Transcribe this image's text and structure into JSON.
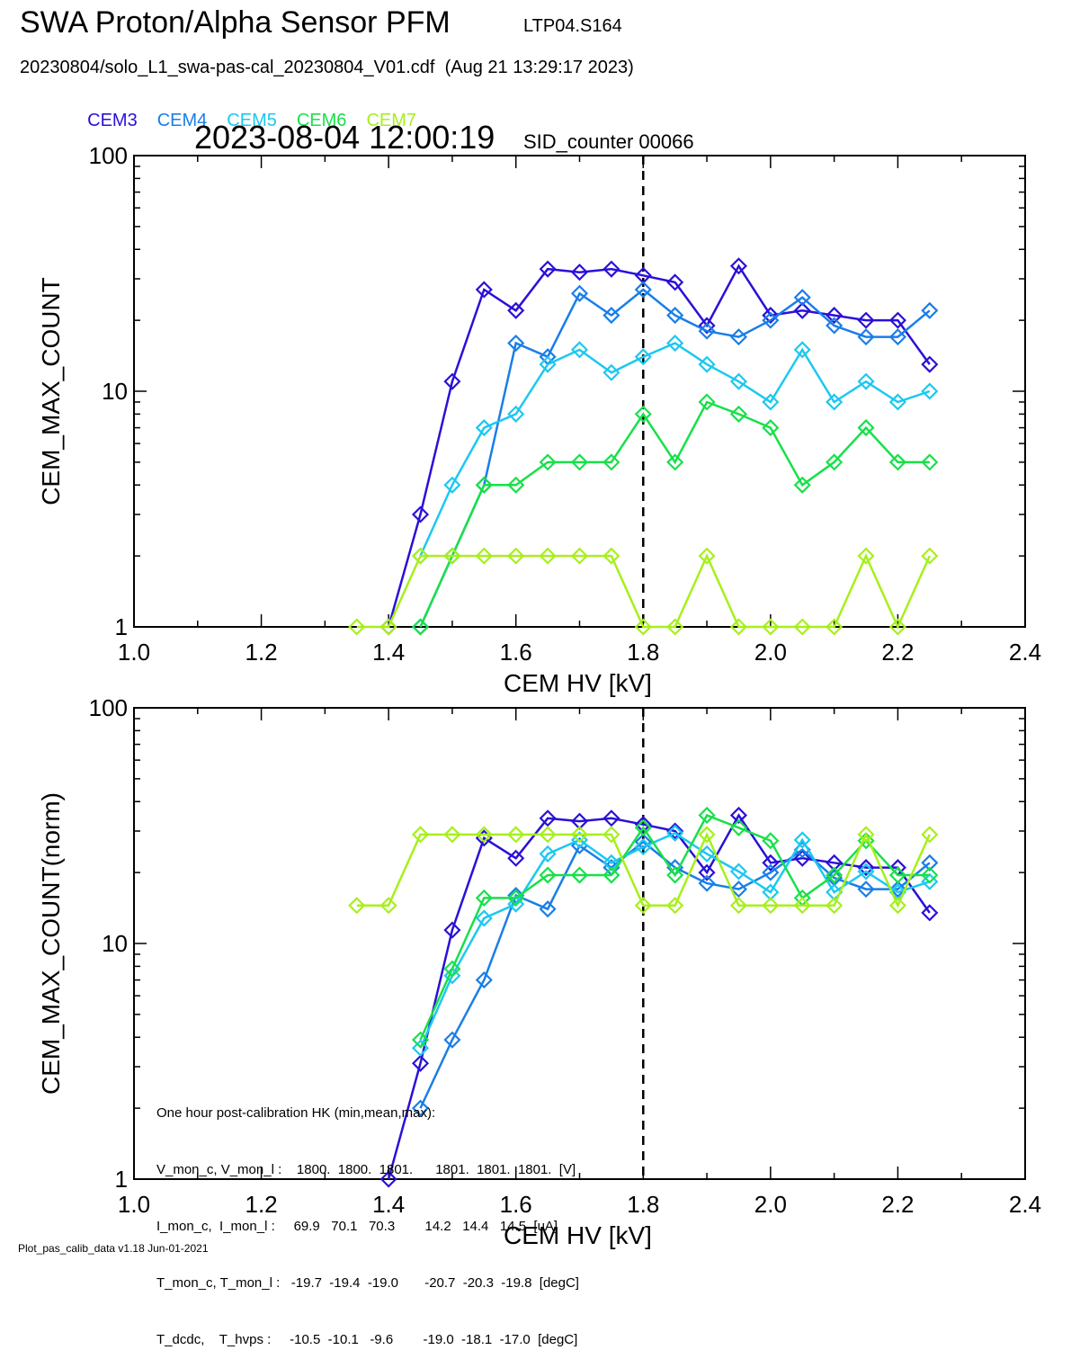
{
  "header": {
    "title": "SWA Proton/Alpha Sensor PFM",
    "run_id": "LTP04.S164",
    "filename": "20230804/solo_L1_swa-pas-cal_20230804_V01.cdf  (Aug 21 13:29:17 2023)",
    "timestamp": "2023-08-04 12:00:19",
    "sid_counter": "SID_counter 00066"
  },
  "footer": {
    "text": "Plot_pas_calib_data v1.18 Jun-01-2021"
  },
  "hk_box": {
    "lines": [
      "One hour post-calibration HK (min,mean,max):",
      "V_mon_c, V_mon_l :    1800.  1800.  1801.      1801.  1801.  1801.  [V]",
      "I_mon_c,  I_mon_l :     69.9   70.1   70.3        14.2   14.4   14.5  [uA]",
      "T_mon_c, T_mon_l :   -19.7  -19.4  -19.0       -20.7  -20.3  -19.8  [degC]",
      "T_dcdc,    T_hvps :     -10.5  -10.1   -9.6        -19.0  -18.1  -17.0  [degC]"
    ]
  },
  "colors": {
    "CEM3": "#2a10d8",
    "CEM4": "#1a7ee8",
    "CEM5": "#1cc8f0",
    "CEM6": "#18e04a",
    "CEM7": "#a6f01a"
  },
  "chart_data": [
    {
      "type": "line",
      "xlabel": "CEM HV [kV]",
      "ylabel": "CEM_MAX_COUNT",
      "xlim": [
        1.0,
        2.4
      ],
      "ylim": [
        1,
        100
      ],
      "yscale": "log",
      "xticks": [
        "1.0",
        "1.2",
        "1.4",
        "1.6",
        "1.8",
        "2.0",
        "2.2",
        "2.4"
      ],
      "yticks": [
        "1",
        "10",
        "100"
      ],
      "vline_x": 1.8,
      "series": [
        {
          "name": "CEM3",
          "x": [
            1.4,
            1.45,
            1.5,
            1.55,
            1.6,
            1.65,
            1.7,
            1.75,
            1.8,
            1.85,
            1.9,
            1.95,
            2.0,
            2.05,
            2.1,
            2.15,
            2.2,
            2.25
          ],
          "y": [
            1,
            3,
            11,
            27,
            22,
            33,
            32,
            33,
            31,
            29,
            19,
            34,
            21,
            22,
            21,
            20,
            20,
            13
          ]
        },
        {
          "name": "CEM4",
          "x": [
            1.45,
            1.5,
            1.55,
            1.6,
            1.65,
            1.7,
            1.75,
            1.8,
            1.85,
            1.9,
            1.95,
            2.0,
            2.05,
            2.1,
            2.15,
            2.2,
            2.25
          ],
          "y": [
            1,
            2,
            4,
            16,
            14,
            26,
            21,
            27,
            21,
            18,
            17,
            20,
            25,
            19,
            17,
            17,
            22
          ]
        },
        {
          "name": "CEM5",
          "x": [
            1.45,
            1.5,
            1.55,
            1.6,
            1.65,
            1.7,
            1.75,
            1.8,
            1.85,
            1.9,
            1.95,
            2.0,
            2.05,
            2.1,
            2.15,
            2.2,
            2.25
          ],
          "y": [
            2,
            4,
            7,
            8,
            13,
            15,
            12,
            14,
            16,
            13,
            11,
            9,
            15,
            9,
            11,
            9,
            10
          ]
        },
        {
          "name": "CEM6",
          "x": [
            1.45,
            1.5,
            1.55,
            1.6,
            1.65,
            1.7,
            1.75,
            1.8,
            1.85,
            1.9,
            1.95,
            2.0,
            2.05,
            2.1,
            2.15,
            2.2,
            2.25
          ],
          "y": [
            1,
            2,
            4,
            4,
            5,
            5,
            5,
            8,
            5,
            9,
            8,
            7,
            4,
            5,
            7,
            5,
            5
          ]
        },
        {
          "name": "CEM7",
          "x": [
            1.35,
            1.4,
            1.45,
            1.5,
            1.55,
            1.6,
            1.65,
            1.7,
            1.75,
            1.8,
            1.85,
            1.9,
            1.95,
            2.0,
            2.05,
            2.1,
            2.15,
            2.2,
            2.25
          ],
          "y": [
            1,
            1,
            2,
            2,
            2,
            2,
            2,
            2,
            2,
            1,
            1,
            2,
            1,
            1,
            1,
            1,
            2,
            1,
            2
          ]
        }
      ]
    },
    {
      "type": "line",
      "xlabel": "CEM HV [kV]",
      "ylabel": "CEM_MAX_COUNT(norm)",
      "xlim": [
        1.0,
        2.4
      ],
      "ylim": [
        1,
        100
      ],
      "yscale": "log",
      "xticks": [
        "1.0",
        "1.2",
        "1.4",
        "1.6",
        "1.8",
        "2.0",
        "2.2",
        "2.4"
      ],
      "yticks": [
        "1",
        "10",
        "100"
      ],
      "vline_x": 1.8,
      "series": [
        {
          "name": "CEM3",
          "x": [
            1.4,
            1.45,
            1.5,
            1.55,
            1.6,
            1.65,
            1.7,
            1.75,
            1.8,
            1.85,
            1.9,
            1.95,
            2.0,
            2.05,
            2.1,
            2.15,
            2.2,
            2.25
          ],
          "y": [
            1,
            3.1,
            11.4,
            28,
            23,
            34,
            33,
            34,
            32,
            30,
            20,
            35,
            22,
            23,
            22,
            21,
            21,
            13.5
          ]
        },
        {
          "name": "CEM4",
          "x": [
            1.45,
            1.5,
            1.55,
            1.6,
            1.65,
            1.7,
            1.75,
            1.8,
            1.85,
            1.9,
            1.95,
            2.0,
            2.05,
            2.1,
            2.15,
            2.2,
            2.25
          ],
          "y": [
            2.0,
            3.9,
            7.0,
            16,
            14,
            26,
            21,
            27,
            21,
            18,
            17,
            20,
            25,
            19,
            17,
            17,
            22
          ]
        },
        {
          "name": "CEM5",
          "x": [
            1.45,
            1.5,
            1.55,
            1.6,
            1.65,
            1.7,
            1.75,
            1.8,
            1.85,
            1.9,
            1.95,
            2.0,
            2.05,
            2.1,
            2.15,
            2.2,
            2.25
          ],
          "y": [
            3.6,
            7.3,
            12.8,
            14.7,
            24,
            27.5,
            22,
            25.7,
            29.4,
            24,
            20.2,
            16.5,
            27.5,
            16.5,
            20.2,
            16.5,
            18.3
          ]
        },
        {
          "name": "CEM6",
          "x": [
            1.45,
            1.5,
            1.55,
            1.6,
            1.65,
            1.7,
            1.75,
            1.8,
            1.85,
            1.9,
            1.95,
            2.0,
            2.05,
            2.1,
            2.15,
            2.2,
            2.25
          ],
          "y": [
            3.9,
            7.8,
            15.6,
            15.6,
            19.5,
            19.5,
            19.5,
            31,
            19.5,
            35,
            31,
            27.3,
            15.6,
            19.5,
            27.3,
            19.5,
            19.5
          ]
        },
        {
          "name": "CEM7",
          "x": [
            1.35,
            1.4,
            1.45,
            1.5,
            1.55,
            1.6,
            1.65,
            1.7,
            1.75,
            1.8,
            1.85,
            1.9,
            1.95,
            2.0,
            2.05,
            2.1,
            2.15,
            2.2,
            2.25
          ],
          "y": [
            14.5,
            14.5,
            29,
            29,
            29,
            29,
            29,
            29,
            29,
            14.5,
            14.5,
            29,
            14.5,
            14.5,
            14.5,
            14.5,
            29,
            14.5,
            29
          ]
        }
      ]
    }
  ]
}
